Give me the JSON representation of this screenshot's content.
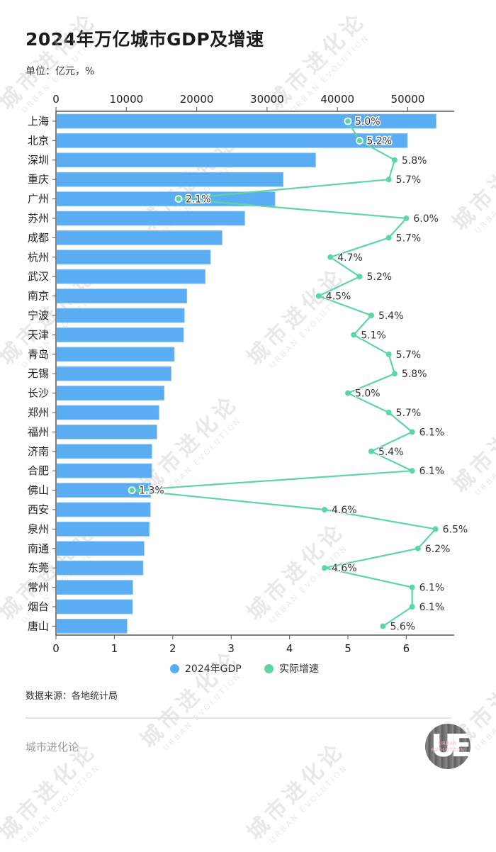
{
  "header": {
    "title": "2024年万亿城市GDP及增速",
    "subtitle": "单位：亿元，%"
  },
  "footer": {
    "source": "数据来源：各地统计局",
    "brand": "城市进化论",
    "logo_text_top": "URBAN",
    "logo_text_bottom": "EVOLUTION",
    "logo_letters": "UE"
  },
  "watermark": {
    "cn": "城市进化论",
    "en": "URBAN EVOLUTION"
  },
  "colors": {
    "bar": "#5aacf3",
    "line": "#5dd6a6",
    "axis": "#555555",
    "text": "#333333"
  },
  "legend": [
    {
      "label": "2024年GDP",
      "color": "#5aacf3"
    },
    {
      "label": "实际增速",
      "color": "#5dd6a6"
    }
  ],
  "chart_data": {
    "type": "bar+line",
    "title": "2024年万亿城市GDP及增速",
    "subtitle": "单位：亿元，%",
    "orientation": "horizontal",
    "categories": [
      "上海",
      "北京",
      "深圳",
      "重庆",
      "广州",
      "苏州",
      "成都",
      "杭州",
      "武汉",
      "南京",
      "宁波",
      "天津",
      "青岛",
      "无锡",
      "长沙",
      "郑州",
      "福州",
      "济南",
      "合肥",
      "佛山",
      "西安",
      "泉州",
      "南通",
      "东莞",
      "常州",
      "烟台",
      "唐山"
    ],
    "series": [
      {
        "name": "2024年GDP",
        "type": "bar",
        "axis": "top",
        "values": [
          53927,
          49843,
          36802,
          32193,
          31032,
          26727,
          23511,
          21860,
          21106,
          18501,
          18148,
          18024,
          16719,
          16263,
          15269,
          14532,
          14237,
          13528,
          13508,
          13362,
          13318,
          13163,
          12422,
          12282,
          10814,
          10776,
          10006
        ]
      },
      {
        "name": "实际增速",
        "type": "line",
        "axis": "bottom",
        "values": [
          5.0,
          5.2,
          5.8,
          5.7,
          2.1,
          6.0,
          5.7,
          4.7,
          5.2,
          4.5,
          5.4,
          5.1,
          5.7,
          5.8,
          5.0,
          5.7,
          6.1,
          5.4,
          6.1,
          1.3,
          4.6,
          6.5,
          6.2,
          4.6,
          6.1,
          6.1,
          5.6
        ],
        "labels": [
          "5.0%",
          "5.2%",
          "5.8%",
          "5.7%",
          "2.1%",
          "6.0%",
          "5.7%",
          "4.7%",
          "5.2%",
          "4.5%",
          "5.4%",
          "5.1%",
          "5.7%",
          "5.8%",
          "5.0%",
          "5.7%",
          "6.1%",
          "5.4%",
          "6.1%",
          "1.3%",
          "4.6%",
          "6.5%",
          "6.2%",
          "4.6%",
          "6.1%",
          "6.1%",
          "5.6%"
        ]
      }
    ],
    "top_axis": {
      "ticks": [
        0,
        10000,
        20000,
        30000,
        40000,
        50000
      ],
      "tick_labels": [
        "0",
        "10000",
        "20000",
        "30000",
        "40000",
        "50000"
      ],
      "range": [
        0,
        57000
      ]
    },
    "bottom_axis": {
      "ticks": [
        0,
        1,
        2,
        3,
        4,
        5,
        6
      ],
      "tick_labels": [
        "0",
        "1",
        "2",
        "3",
        "4",
        "5",
        "6"
      ],
      "range": [
        0,
        6.8
      ]
    },
    "legend_position": "bottom",
    "grid": false
  }
}
